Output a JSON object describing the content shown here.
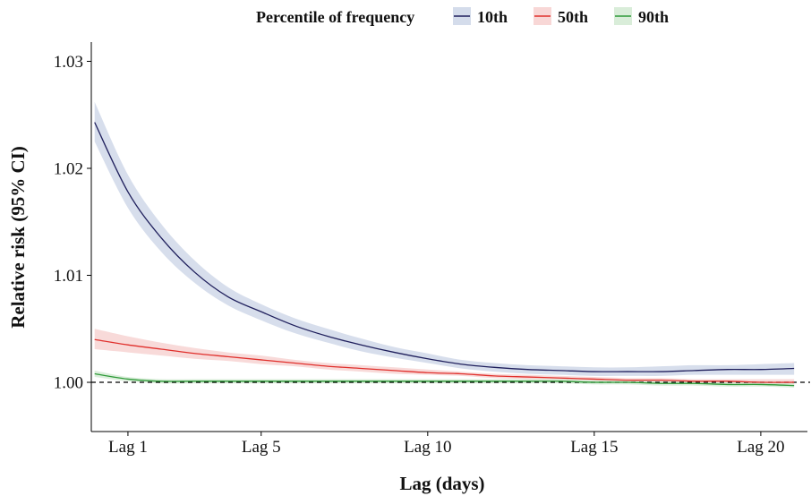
{
  "chart_data": {
    "type": "line",
    "xlabel": "Lag (days)",
    "ylabel": "Relative risk (95% CI)",
    "legend_title": "Percentile of frequency",
    "legend_position": "top",
    "grid": false,
    "xlim": [
      -0.1,
      21.4
    ],
    "ylim": [
      0.9954,
      1.0318
    ],
    "x_ticks": [
      1,
      5,
      10,
      15,
      20
    ],
    "x_tick_labels": [
      "Lag 1",
      "Lag 5",
      "Lag 10",
      "Lag 15",
      "Lag 20"
    ],
    "y_ticks": [
      1.0,
      1.01,
      1.02,
      1.03
    ],
    "y_tick_labels": [
      "1.00",
      "1.01",
      "1.02",
      "1.03"
    ],
    "reference_line": {
      "y": 1.0,
      "style": "dashed"
    },
    "x": [
      0,
      1,
      2,
      3,
      4,
      5,
      6,
      7,
      8,
      9,
      10,
      11,
      12,
      13,
      14,
      15,
      16,
      17,
      18,
      19,
      20,
      21
    ],
    "series": [
      {
        "name": "10th",
        "color": "#1f1f5c",
        "fill": "#c9d3e6",
        "values": [
          1.0243,
          1.0178,
          1.0135,
          1.0103,
          1.008,
          1.0066,
          1.0053,
          1.0043,
          1.0035,
          1.0028,
          1.0022,
          1.0017,
          1.0014,
          1.0012,
          1.0011,
          1.001,
          1.001,
          1.001,
          1.0011,
          1.0012,
          1.0012,
          1.0013
        ],
        "lower": [
          1.0225,
          1.0163,
          1.0122,
          1.0093,
          1.0072,
          1.0058,
          1.0046,
          1.0037,
          1.0029,
          1.0023,
          1.0018,
          1.0013,
          1.001,
          1.0008,
          1.0007,
          1.0006,
          1.0006,
          1.0006,
          1.0007,
          1.0007,
          1.0007,
          1.0007
        ],
        "upper": [
          1.0262,
          1.0194,
          1.0148,
          1.0114,
          1.0089,
          1.0073,
          1.006,
          1.005,
          1.0041,
          1.0033,
          1.0027,
          1.0021,
          1.0018,
          1.0016,
          1.0015,
          1.0014,
          1.0014,
          1.0015,
          1.0016,
          1.0016,
          1.0017,
          1.0018
        ]
      },
      {
        "name": "50th",
        "color": "#e0302c",
        "fill": "#f6cdcc",
        "values": [
          1.004,
          1.0035,
          1.0031,
          1.0027,
          1.0024,
          1.0021,
          1.0018,
          1.0015,
          1.0013,
          1.0011,
          1.0009,
          1.0008,
          1.0006,
          1.0005,
          1.0004,
          1.0003,
          1.0002,
          1.0002,
          1.0001,
          1.0001,
          1.0,
          1.0
        ],
        "lower": [
          1.0031,
          1.0028,
          1.0025,
          1.0022,
          1.002,
          1.0017,
          1.0015,
          1.0012,
          1.001,
          1.0008,
          1.0007,
          1.0006,
          1.0004,
          1.0003,
          1.0002,
          1.0001,
          1.0,
          0.9999,
          0.9999,
          0.9998,
          0.9997,
          0.9997
        ],
        "upper": [
          1.005,
          1.0043,
          1.0037,
          1.0032,
          1.0028,
          1.0025,
          1.0021,
          1.0018,
          1.0016,
          1.0014,
          1.0012,
          1.001,
          1.0008,
          1.0007,
          1.0006,
          1.0005,
          1.0004,
          1.0004,
          1.0003,
          1.0003,
          1.0003,
          1.0003
        ]
      },
      {
        "name": "90th",
        "color": "#2e9a38",
        "fill": "#cfe8cf",
        "values": [
          1.0008,
          1.0003,
          1.0001,
          1.0001,
          1.0001,
          1.0001,
          1.0001,
          1.0001,
          1.0001,
          1.0001,
          1.0001,
          1.0001,
          1.0001,
          1.0001,
          1.0001,
          1.0,
          1.0,
          0.9999,
          0.9999,
          0.9998,
          0.9998,
          0.9997
        ],
        "lower": [
          1.0005,
          1.0001,
          0.9999,
          0.9999,
          0.9999,
          0.9999,
          0.9999,
          0.9999,
          0.9999,
          0.9999,
          0.9999,
          0.9999,
          0.9999,
          0.9999,
          0.9999,
          0.9998,
          0.9998,
          0.9997,
          0.9997,
          0.9996,
          0.9996,
          0.9995
        ],
        "upper": [
          1.0011,
          1.0005,
          1.0003,
          1.0003,
          1.0003,
          1.0003,
          1.0003,
          1.0003,
          1.0003,
          1.0003,
          1.0003,
          1.0003,
          1.0003,
          1.0003,
          1.0003,
          1.0002,
          1.0002,
          1.0001,
          1.0001,
          1.0,
          1.0,
          0.9999
        ]
      }
    ]
  }
}
